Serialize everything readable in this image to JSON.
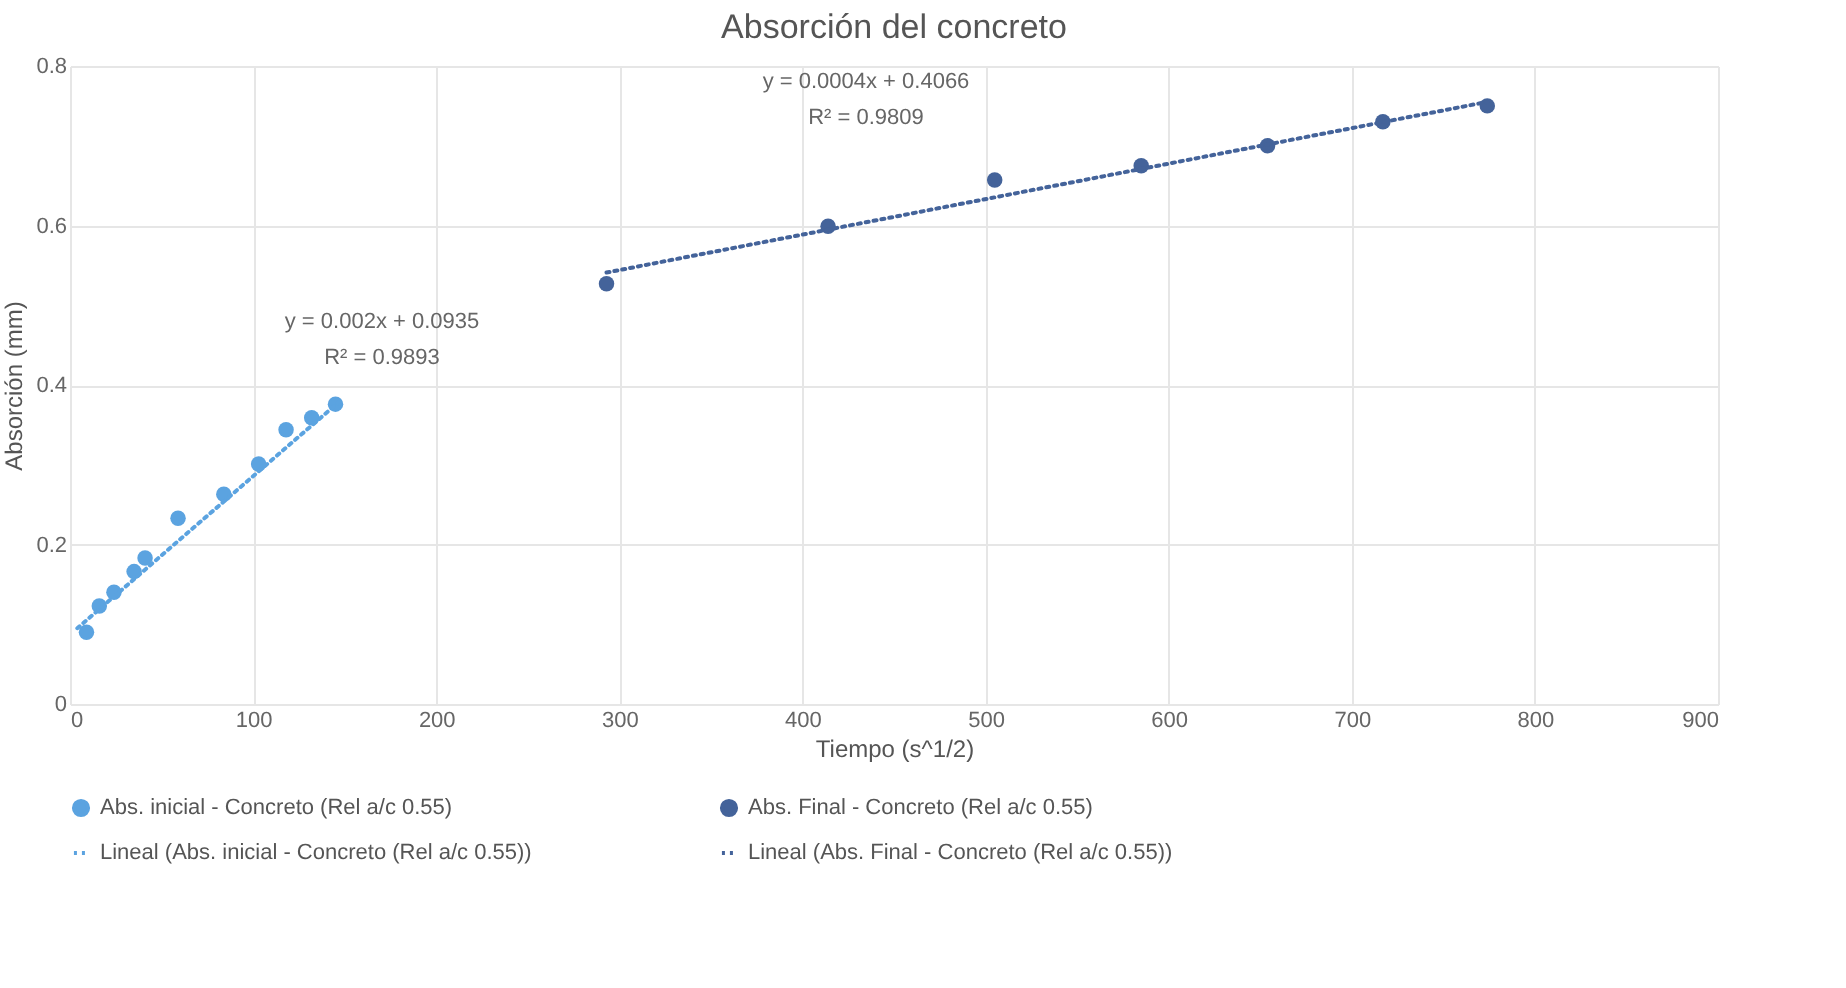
{
  "chart_data": {
    "type": "scatter",
    "title": "Absorción del concreto",
    "xlabel": "Tiempo (s^1/2)",
    "ylabel": "Absorción (mm)",
    "xlim": [
      0,
      900
    ],
    "xticks": [
      0,
      100,
      200,
      300,
      400,
      500,
      600,
      700,
      800,
      900
    ],
    "ylim": [
      0,
      0.8
    ],
    "yticks": [
      {
        "value": 0,
        "label": "0"
      },
      0.2,
      0.4,
      0.6,
      0.8
    ],
    "grid": true,
    "legend": "bottom",
    "series": [
      {
        "name": "Abs. inicial - Concreto (Rel a/c 0.55)",
        "marker": "circle",
        "color": "#5ba3e0",
        "x": [
          9,
          16,
          24,
          35,
          41,
          59,
          84,
          103,
          118,
          132,
          145
        ],
        "values": [
          0.09,
          0.123,
          0.14,
          0.166,
          0.183,
          0.233,
          0.263,
          0.301,
          0.344,
          0.359,
          0.376
        ]
      },
      {
        "name": "Abs. Final - Concreto (Rel a/c 0.55)",
        "marker": "circle",
        "color": "#44639a",
        "x": [
          293,
          414,
          505,
          585,
          654,
          717,
          774
        ],
        "values": [
          0.527,
          0.599,
          0.657,
          0.675,
          0.7,
          0.73,
          0.75
        ]
      },
      {
        "name": "Lineal (Abs. inicial - Concreto (Rel a/c 0.55))",
        "type": "line",
        "marker": "none",
        "line_style": "dotted",
        "color": "#5ba3e0",
        "x": [
          4,
          148
        ],
        "values": [
          0.095,
          0.381
        ]
      },
      {
        "name": "Lineal (Abs. Final - Concreto (Rel a/c 0.55))",
        "type": "line",
        "marker": "none",
        "line_style": "dotted",
        "color": "#44639a",
        "x": [
          293,
          774
        ],
        "values": [
          0.541,
          0.755
        ]
      }
    ],
    "annotations": [
      "y = 0.002x + 0.0935",
      "R² = 0.9893",
      "y = 0.0004x + 0.4066",
      "R² = 0.9809"
    ]
  }
}
